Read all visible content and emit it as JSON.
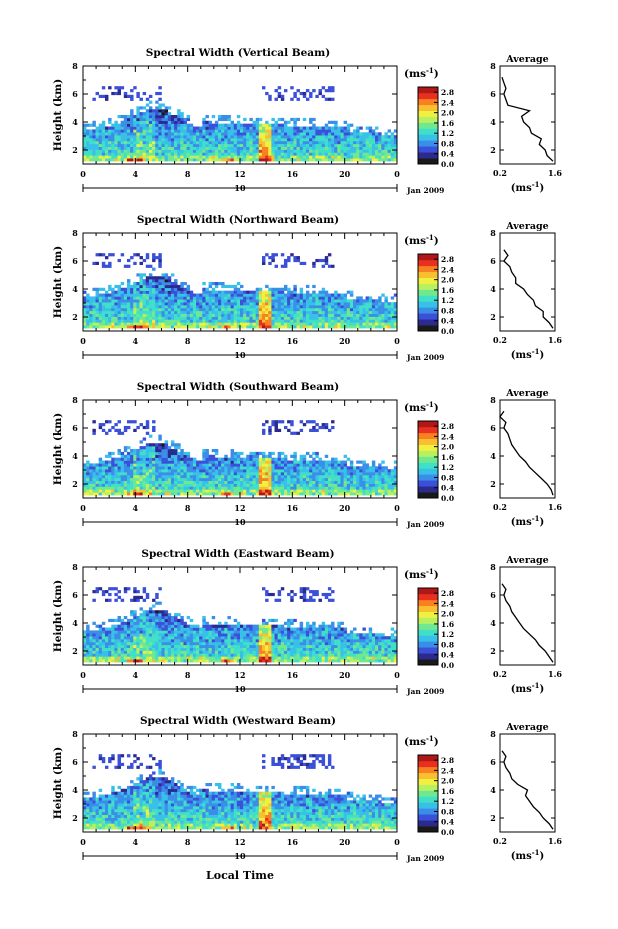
{
  "figure": {
    "xlabel_bottom": "Local Time",
    "colorbar_unit": "(ms",
    "colorbar_unit_exp": "-1",
    "colorbar_unit_close": ")",
    "date_label": "Jan 2009",
    "day_label": "10",
    "avg_title": "Average",
    "avg_xlabel": "(ms",
    "avg_xlabel_exp": "-1",
    "avg_xlabel_close": ")",
    "colormap": [
      "#1a1a1a",
      "#2a2a8f",
      "#3a50d8",
      "#3a8ee8",
      "#38c0e8",
      "#40e0c8",
      "#70e890",
      "#b8f060",
      "#f0f040",
      "#f8c030",
      "#f88020",
      "#e83020",
      "#b01818"
    ]
  },
  "chart_data": [
    {
      "type": "heatmap",
      "title": "Spectral Width (Vertical Beam)",
      "xlabel": "",
      "ylabel": "Height (km)",
      "x_ticks": [
        "0",
        "4",
        "8",
        "12",
        "16",
        "20",
        "0"
      ],
      "y_ticks": [
        "2",
        "4",
        "6",
        "8"
      ],
      "xlim": [
        0,
        24
      ],
      "ylim": [
        1,
        8
      ],
      "colorbar_ticks": [
        "0.0",
        "0.4",
        "0.8",
        "1.2",
        "1.6",
        "2.0",
        "2.4",
        "2.8"
      ],
      "colorbar_range": [
        0,
        3.0
      ],
      "average": {
        "title": "Average",
        "x_ticks": [
          "0.2",
          "1.6"
        ],
        "y_ticks": [
          "2",
          "4",
          "6",
          "8"
        ],
        "profile_height": [
          1.2,
          1.6,
          2.0,
          2.4,
          2.8,
          3.2,
          3.6,
          4.0,
          4.4,
          4.8,
          5.2,
          5.6,
          6.0,
          6.4,
          6.8,
          7.2
        ],
        "profile_value": [
          1.55,
          1.4,
          1.35,
          1.2,
          1.25,
          1.0,
          0.95,
          0.8,
          0.75,
          0.95,
          0.4,
          0.35,
          0.3,
          0.35,
          0.3,
          0.25
        ]
      }
    },
    {
      "type": "heatmap",
      "title": "Spectral Width (Northward Beam)",
      "xlabel": "",
      "ylabel": "Height (km)",
      "x_ticks": [
        "0",
        "4",
        "8",
        "12",
        "16",
        "20",
        "0"
      ],
      "y_ticks": [
        "2",
        "4",
        "6",
        "8"
      ],
      "xlim": [
        0,
        24
      ],
      "ylim": [
        1,
        8
      ],
      "colorbar_ticks": [
        "0.0",
        "0.4",
        "0.8",
        "1.2",
        "1.6",
        "2.0",
        "2.4",
        "2.8"
      ],
      "colorbar_range": [
        0,
        3.0
      ],
      "average": {
        "title": "Average",
        "x_ticks": [
          "0.2",
          "1.6"
        ],
        "y_ticks": [
          "2",
          "4",
          "6",
          "8"
        ],
        "profile_height": [
          1.2,
          1.6,
          2.0,
          2.4,
          2.8,
          3.2,
          3.6,
          4.0,
          4.4,
          4.8,
          5.2,
          5.6,
          6.0,
          6.4,
          6.8
        ],
        "profile_value": [
          1.55,
          1.45,
          1.3,
          1.3,
          1.1,
          1.05,
          0.9,
          0.8,
          0.6,
          0.6,
          0.5,
          0.45,
          0.3,
          0.4,
          0.3
        ]
      }
    },
    {
      "type": "heatmap",
      "title": "Spectral Width (Southward Beam)",
      "xlabel": "",
      "ylabel": "Height (km)",
      "x_ticks": [
        "0",
        "4",
        "8",
        "12",
        "16",
        "20",
        "0"
      ],
      "y_ticks": [
        "2",
        "4",
        "6",
        "8"
      ],
      "xlim": [
        0,
        24
      ],
      "ylim": [
        1,
        8
      ],
      "colorbar_ticks": [
        "0.0",
        "0.4",
        "0.8",
        "1.2",
        "1.6",
        "2.0",
        "2.4",
        "2.8"
      ],
      "colorbar_range": [
        0,
        3.0
      ],
      "average": {
        "title": "Average",
        "x_ticks": [
          "0.2",
          "1.6"
        ],
        "y_ticks": [
          "2",
          "4",
          "6",
          "8"
        ],
        "profile_height": [
          1.2,
          1.6,
          2.0,
          2.4,
          2.8,
          3.2,
          3.6,
          4.0,
          4.4,
          4.8,
          5.2,
          5.6,
          6.0,
          6.4,
          6.8,
          7.2
        ],
        "profile_value": [
          1.55,
          1.5,
          1.4,
          1.25,
          1.1,
          0.95,
          0.85,
          0.7,
          0.6,
          0.5,
          0.45,
          0.4,
          0.3,
          0.35,
          0.2,
          0.3
        ]
      }
    },
    {
      "type": "heatmap",
      "title": "Spectral Width (Eastward Beam)",
      "xlabel": "",
      "ylabel": "Height (km)",
      "x_ticks": [
        "0",
        "4",
        "8",
        "12",
        "16",
        "20",
        "0"
      ],
      "y_ticks": [
        "2",
        "4",
        "6",
        "8"
      ],
      "xlim": [
        0,
        24
      ],
      "ylim": [
        1,
        8
      ],
      "colorbar_ticks": [
        "0.0",
        "0.4",
        "0.8",
        "1.2",
        "1.6",
        "2.0",
        "2.4",
        "2.8"
      ],
      "colorbar_range": [
        0,
        3.0
      ],
      "average": {
        "title": "Average",
        "x_ticks": [
          "0.2",
          "1.6"
        ],
        "y_ticks": [
          "2",
          "4",
          "6",
          "8"
        ],
        "profile_height": [
          1.2,
          1.6,
          2.0,
          2.4,
          2.8,
          3.2,
          3.6,
          4.0,
          4.4,
          4.8,
          5.2,
          5.6,
          6.0,
          6.4,
          6.8
        ],
        "profile_value": [
          1.55,
          1.45,
          1.35,
          1.2,
          1.1,
          0.95,
          0.8,
          0.7,
          0.6,
          0.5,
          0.45,
          0.35,
          0.3,
          0.35,
          0.25
        ]
      }
    },
    {
      "type": "heatmap",
      "title": "Spectral Width (Westward Beam)",
      "xlabel": "Local Time",
      "ylabel": "Height (km)",
      "x_ticks": [
        "0",
        "4",
        "8",
        "12",
        "16",
        "20",
        "0"
      ],
      "y_ticks": [
        "2",
        "4",
        "6",
        "8"
      ],
      "xlim": [
        0,
        24
      ],
      "ylim": [
        1,
        8
      ],
      "colorbar_ticks": [
        "0.0",
        "0.4",
        "0.8",
        "1.2",
        "1.6",
        "2.0",
        "2.4",
        "2.8"
      ],
      "colorbar_range": [
        0,
        3.0
      ],
      "average": {
        "title": "Average",
        "x_ticks": [
          "0.2",
          "1.6"
        ],
        "y_ticks": [
          "2",
          "4",
          "6",
          "8"
        ],
        "profile_height": [
          1.2,
          1.6,
          2.0,
          2.4,
          2.8,
          3.2,
          3.6,
          4.0,
          4.4,
          4.8,
          5.2,
          5.6,
          6.0,
          6.4,
          6.8
        ],
        "profile_value": [
          1.55,
          1.45,
          1.3,
          1.2,
          1.05,
          0.95,
          0.85,
          0.9,
          0.65,
          0.5,
          0.45,
          0.35,
          0.3,
          0.35,
          0.25
        ]
      }
    }
  ]
}
